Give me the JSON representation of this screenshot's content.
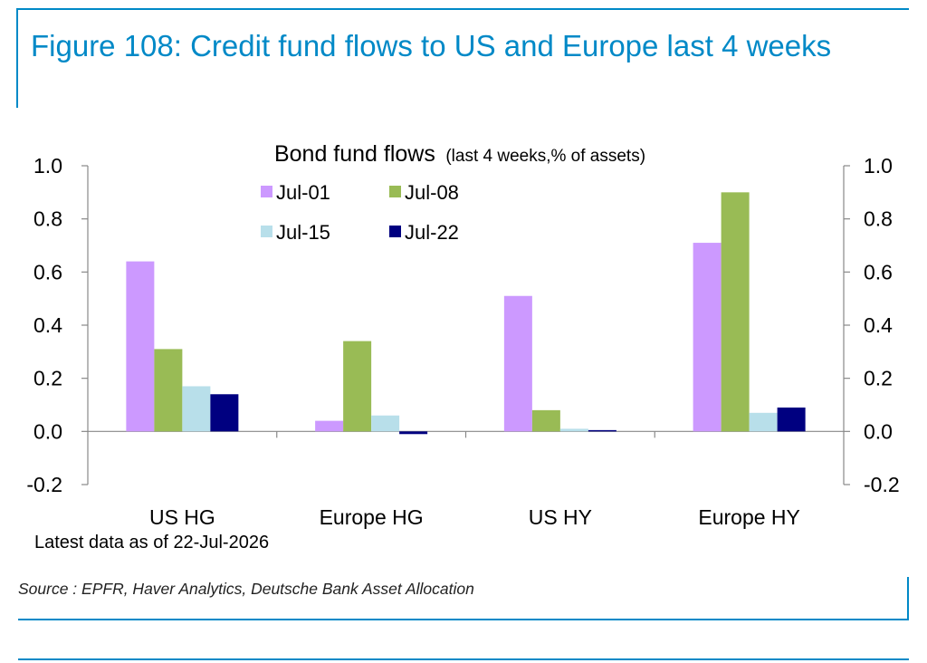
{
  "figure": {
    "title": "Figure 108: Credit fund flows to US and Europe last 4 weeks",
    "note": "Latest data as of 22-Jul-2026",
    "source": "Source : EPFR, Haver Analytics, Deutsche Bank Asset Allocation",
    "accent_color": "#0089C7"
  },
  "chart_data": {
    "type": "bar",
    "title": "Bond fund flows",
    "subtitle": "(last 4 weeks,% of assets)",
    "categories": [
      "US HG",
      "Europe HG",
      "US HY",
      "Europe HY"
    ],
    "series": [
      {
        "name": "Jul-01",
        "color": "#CC99FF",
        "values": [
          0.64,
          0.04,
          0.51,
          0.71
        ]
      },
      {
        "name": "Jul-08",
        "color": "#99BB55",
        "values": [
          0.31,
          0.34,
          0.08,
          0.9
        ]
      },
      {
        "name": "Jul-15",
        "color": "#B8DFEA",
        "values": [
          0.17,
          0.06,
          0.01,
          0.07
        ]
      },
      {
        "name": "Jul-22",
        "color": "#000080",
        "values": [
          0.14,
          -0.01,
          0.005,
          0.09
        ]
      }
    ],
    "ylim": [
      -0.2,
      1.0
    ],
    "yticks": [
      "-0.2",
      "0.0",
      "0.2",
      "0.4",
      "0.6",
      "0.8",
      "1.0"
    ],
    "y2ticks": [
      "-0.2",
      "0.0",
      "0.2",
      "0.4",
      "0.6",
      "0.8",
      "1.0"
    ],
    "legend_position": "top-center",
    "grid": false
  }
}
